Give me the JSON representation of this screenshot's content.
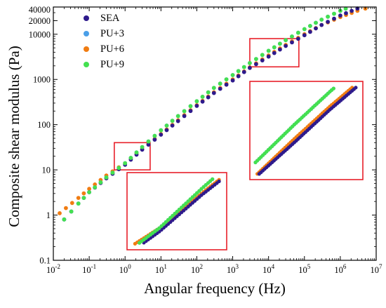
{
  "chart_data": {
    "type": "scatter",
    "title": "",
    "xlabel": "Angular frequency (Hz)",
    "ylabel": "Composite shear modulus (Pa)",
    "x_scale": "log",
    "y_scale": "log",
    "xlim": [
      0.01,
      10000000
    ],
    "ylim": [
      0.1,
      40000
    ],
    "grid": false,
    "legend_position": "top-left",
    "x_tick_labels": [
      {
        "base": "10",
        "exp": "-2"
      },
      {
        "base": "10",
        "exp": "-1"
      },
      {
        "base": "10",
        "exp": "0"
      },
      {
        "base": "10",
        "exp": "1"
      },
      {
        "base": "10",
        "exp": "2"
      },
      {
        "base": "10",
        "exp": "3"
      },
      {
        "base": "10",
        "exp": "4"
      },
      {
        "base": "10",
        "exp": "5"
      },
      {
        "base": "10",
        "exp": "6"
      },
      {
        "base": "10",
        "exp": "7"
      }
    ],
    "y_tick_labels": [
      "0.1",
      "1",
      "10",
      "100",
      "1000",
      "10000",
      "20000",
      "40000"
    ],
    "series": [
      {
        "name": "SEA",
        "color": "#2e1a8c",
        "x": [
          0.02,
          0.05,
          0.1,
          0.3,
          1,
          3,
          10,
          30,
          100,
          300,
          1000,
          3000,
          10000,
          30000,
          100000,
          300000,
          1000000,
          3000000
        ],
        "y": [
          0.8,
          1.8,
          3.2,
          6.5,
          13,
          28,
          60,
          120,
          260,
          500,
          950,
          1800,
          3200,
          5500,
          9500,
          16000,
          26000,
          37000
        ]
      },
      {
        "name": "PU+3",
        "color": "#4a9fe8",
        "x": [
          0.02,
          0.05,
          0.1,
          0.3,
          1,
          3,
          10,
          30,
          100,
          300,
          1000,
          3000,
          10000,
          30000,
          100000,
          300000,
          1000000,
          2000000
        ],
        "y": [
          0.8,
          1.8,
          3.2,
          6.8,
          14,
          32,
          75,
          155,
          330,
          650,
          1250,
          2300,
          4300,
          7400,
          13000,
          21000,
          33000,
          41000
        ]
      },
      {
        "name": "PU+6",
        "color": "#f07c12",
        "x": [
          0.015,
          0.05,
          0.1,
          0.3,
          1,
          3,
          10,
          30,
          100,
          300,
          1000,
          3000,
          10000,
          30000,
          100000,
          300000,
          1000000,
          3000000,
          5000000
        ],
        "y": [
          1.1,
          2.4,
          3.8,
          7.5,
          14,
          29,
          62,
          125,
          270,
          520,
          1000,
          1850,
          3400,
          5800,
          10000,
          16000,
          24000,
          33000,
          37000
        ]
      },
      {
        "name": "PU+9",
        "color": "#44e050",
        "x": [
          0.02,
          0.05,
          0.1,
          0.3,
          1,
          3,
          10,
          30,
          100,
          300,
          1000,
          3000,
          10000,
          30000,
          100000,
          300000,
          1000000,
          2000000
        ],
        "y": [
          0.8,
          1.8,
          3.2,
          6.8,
          14,
          32,
          75,
          155,
          330,
          650,
          1250,
          2300,
          4300,
          7400,
          13000,
          21000,
          33000,
          41000
        ]
      }
    ],
    "zoom_regions": [
      {
        "x_range": [
          0.5,
          5
        ],
        "y_range": [
          10,
          40
        ]
      },
      {
        "x_range": [
          3000,
          70000
        ],
        "y_range": [
          1900,
          8000
        ]
      }
    ]
  }
}
